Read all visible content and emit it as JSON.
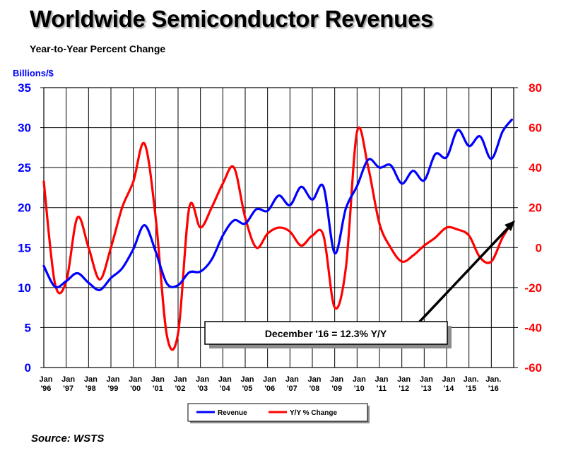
{
  "title": "Worldwide Semiconductor Revenues",
  "subtitle": "Year-to-Year Percent Change",
  "source": "Source: WSTS",
  "annotation": "December '16 = 12.3% Y/Y",
  "colors": {
    "revenue": "#0000ff",
    "yoy": "#ff0000",
    "grid": "#000000",
    "left_axis": "#0000ff",
    "right_axis": "#ff0000"
  },
  "chart_data": {
    "type": "line",
    "ylabel_left": "Billions/$",
    "ylim_left": [
      0,
      35
    ],
    "yticks_left": [
      0,
      5,
      10,
      15,
      20,
      25,
      30,
      35
    ],
    "ylim_right": [
      -60,
      80
    ],
    "yticks_right": [
      -60,
      -40,
      -20,
      0,
      20,
      40,
      60,
      80
    ],
    "x_tick_labels": [
      [
        "Jan",
        "'96"
      ],
      [
        "Jan",
        "'97"
      ],
      [
        "Jan",
        "'98"
      ],
      [
        "Jan",
        "'99"
      ],
      [
        "Jan",
        "'00"
      ],
      [
        "Jan",
        "'01"
      ],
      [
        "Jan",
        "'02"
      ],
      [
        "Jan",
        "'03"
      ],
      [
        "Jan",
        "'04"
      ],
      [
        "Jan",
        "'05"
      ],
      [
        "Jan",
        "'06"
      ],
      [
        "Jan",
        "'07"
      ],
      [
        "Jan",
        "'08"
      ],
      [
        "Jan",
        "'09"
      ],
      [
        "Jan",
        "'10"
      ],
      [
        "Jan",
        "'11"
      ],
      [
        "Jan",
        "'12"
      ],
      [
        "Jan",
        "'13"
      ],
      [
        "Jan",
        "'14"
      ],
      [
        "Jan.",
        "'15"
      ],
      [
        "Jan.",
        "'16"
      ]
    ],
    "grid": true,
    "legend_position": "bottom",
    "series": [
      {
        "name": "Revenue",
        "axis": "left",
        "color": "#0000ff",
        "points": [
          [
            "1996-01",
            12.7
          ],
          [
            "1996-07",
            10.1
          ],
          [
            "1997-01",
            10.8
          ],
          [
            "1997-07",
            11.8
          ],
          [
            "1998-01",
            10.6
          ],
          [
            "1998-07",
            9.7
          ],
          [
            "1999-01",
            11.2
          ],
          [
            "1999-07",
            12.4
          ],
          [
            "2000-01",
            14.8
          ],
          [
            "2000-07",
            17.8
          ],
          [
            "2001-01",
            14.5
          ],
          [
            "2001-07",
            10.5
          ],
          [
            "2002-01",
            10.3
          ],
          [
            "2002-07",
            11.9
          ],
          [
            "2003-01",
            12.0
          ],
          [
            "2003-07",
            13.5
          ],
          [
            "2004-01",
            16.5
          ],
          [
            "2004-07",
            18.4
          ],
          [
            "2005-01",
            18.0
          ],
          [
            "2005-07",
            19.8
          ],
          [
            "2006-01",
            19.6
          ],
          [
            "2006-07",
            21.5
          ],
          [
            "2007-01",
            20.3
          ],
          [
            "2007-07",
            22.6
          ],
          [
            "2008-01",
            21.0
          ],
          [
            "2008-07",
            22.6
          ],
          [
            "2009-01",
            14.3
          ],
          [
            "2009-07",
            19.9
          ],
          [
            "2010-01",
            22.7
          ],
          [
            "2010-07",
            26.0
          ],
          [
            "2011-01",
            25.0
          ],
          [
            "2011-07",
            25.3
          ],
          [
            "2012-01",
            23.0
          ],
          [
            "2012-07",
            24.6
          ],
          [
            "2013-01",
            23.4
          ],
          [
            "2013-07",
            26.7
          ],
          [
            "2014-01",
            26.3
          ],
          [
            "2014-07",
            29.7
          ],
          [
            "2015-01",
            27.7
          ],
          [
            "2015-07",
            28.9
          ],
          [
            "2016-01",
            26.1
          ],
          [
            "2016-07",
            29.5
          ],
          [
            "2016-12",
            31.0
          ]
        ]
      },
      {
        "name": "Y/Y % Change",
        "axis": "right",
        "color": "#ff0000",
        "points": [
          [
            "1996-01",
            33
          ],
          [
            "1996-07",
            -18
          ],
          [
            "1997-01",
            -17
          ],
          [
            "1997-07",
            15
          ],
          [
            "1998-01",
            0
          ],
          [
            "1998-07",
            -16
          ],
          [
            "1999-01",
            0
          ],
          [
            "1999-07",
            20
          ],
          [
            "2000-01",
            33
          ],
          [
            "2000-07",
            52
          ],
          [
            "2001-01",
            15
          ],
          [
            "2001-07",
            -44
          ],
          [
            "2002-01",
            -43
          ],
          [
            "2002-07",
            20
          ],
          [
            "2003-01",
            10
          ],
          [
            "2003-07",
            20
          ],
          [
            "2004-01",
            32
          ],
          [
            "2004-07",
            40
          ],
          [
            "2005-01",
            15
          ],
          [
            "2005-07",
            0
          ],
          [
            "2006-01",
            7
          ],
          [
            "2006-07",
            10
          ],
          [
            "2007-01",
            8
          ],
          [
            "2007-07",
            1
          ],
          [
            "2008-01",
            6
          ],
          [
            "2008-07",
            6
          ],
          [
            "2009-01",
            -30
          ],
          [
            "2009-07",
            -10
          ],
          [
            "2010-01",
            58
          ],
          [
            "2010-07",
            40
          ],
          [
            "2011-01",
            12
          ],
          [
            "2011-07",
            0
          ],
          [
            "2012-01",
            -7
          ],
          [
            "2012-07",
            -4
          ],
          [
            "2013-01",
            1
          ],
          [
            "2013-07",
            5
          ],
          [
            "2014-01",
            10
          ],
          [
            "2014-07",
            9
          ],
          [
            "2015-01",
            6
          ],
          [
            "2015-07",
            -5
          ],
          [
            "2016-01",
            -7
          ],
          [
            "2016-07",
            5
          ],
          [
            "2016-12",
            12.3
          ]
        ]
      }
    ]
  }
}
